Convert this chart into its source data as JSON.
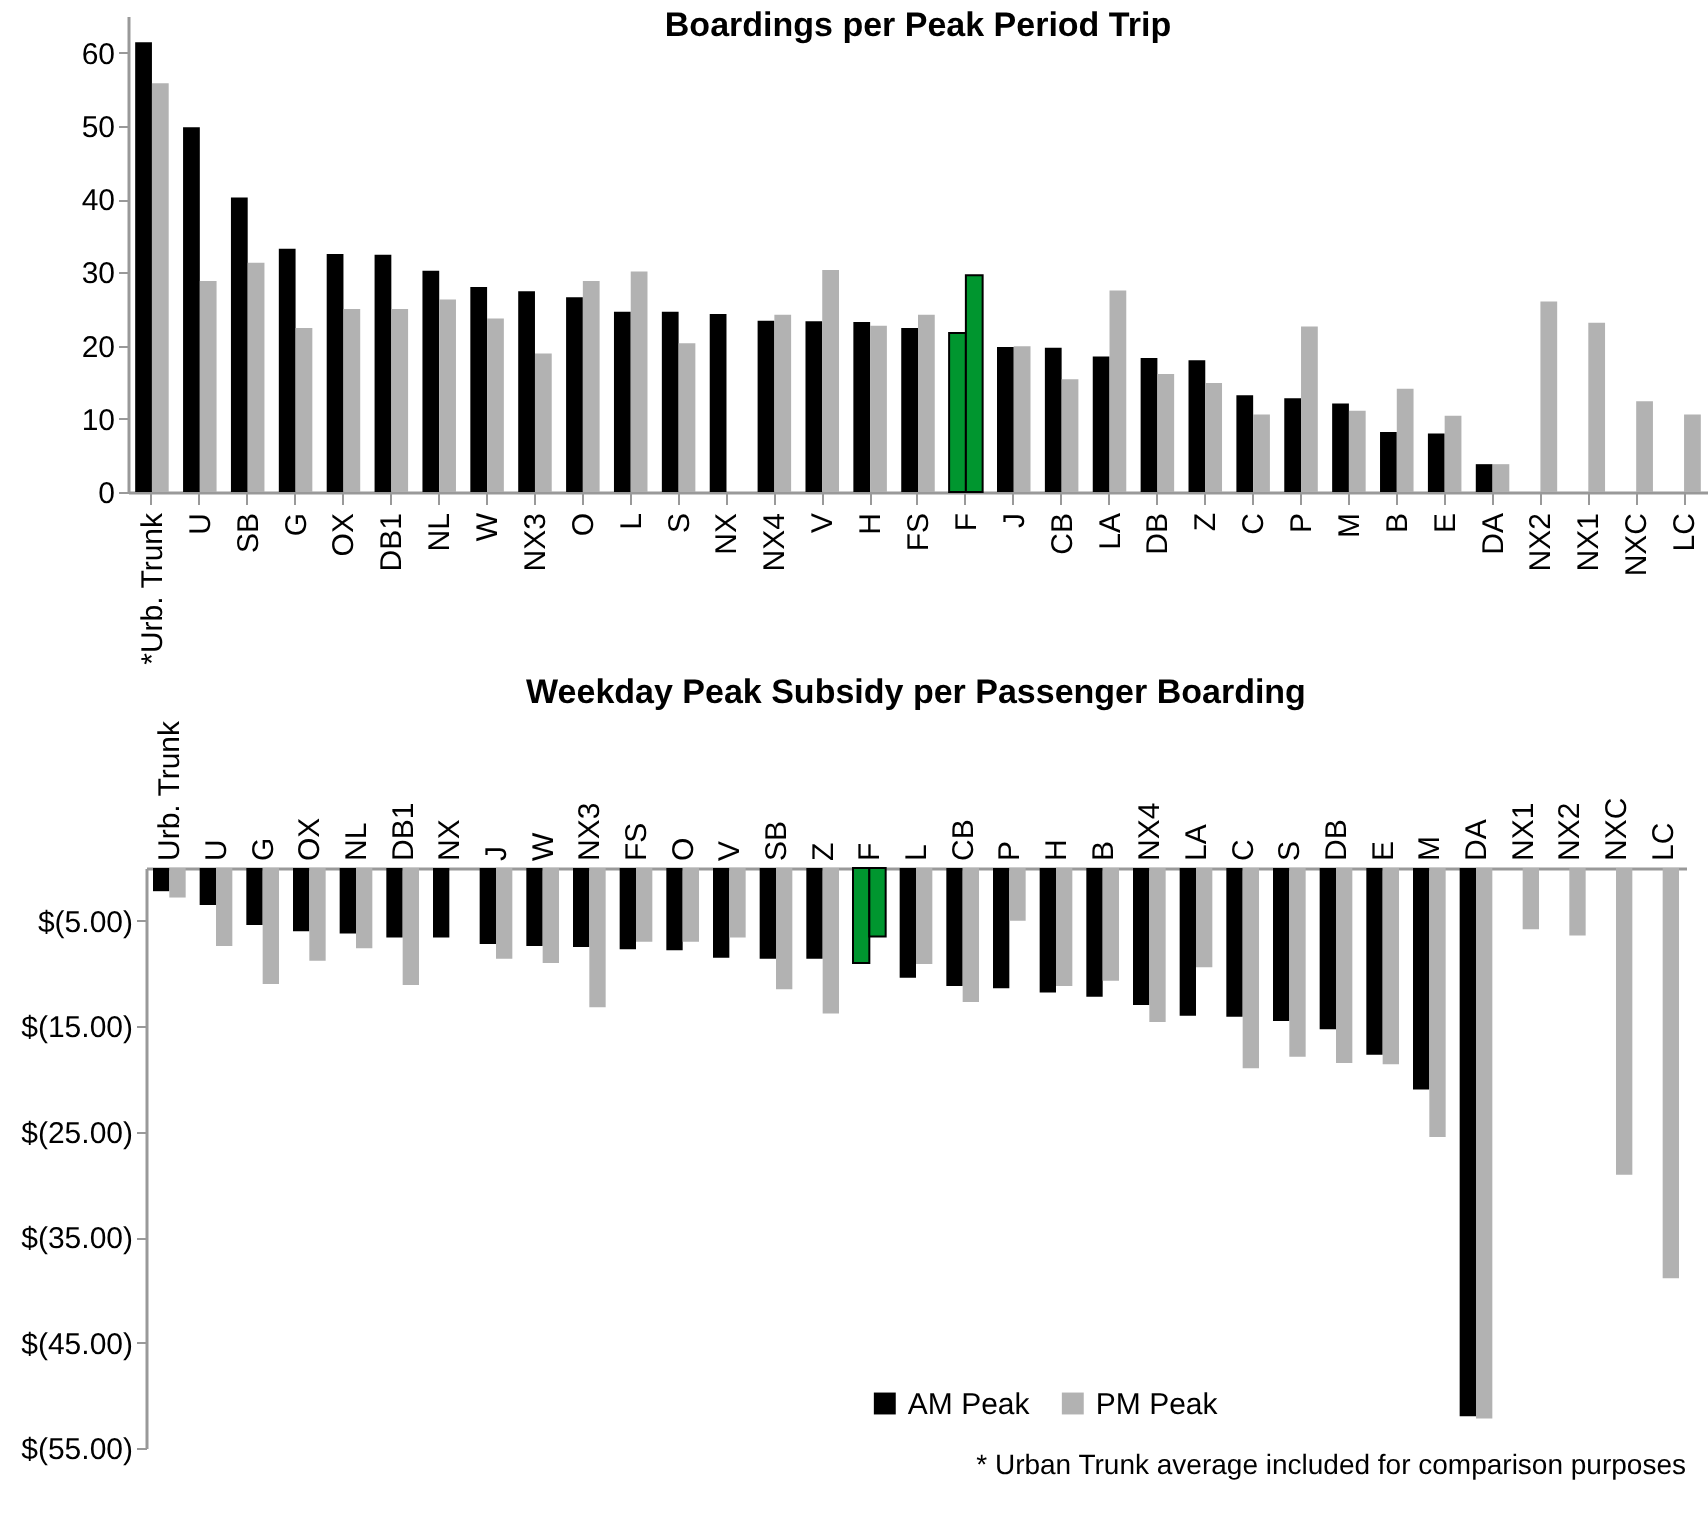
{
  "chart_data": [
    {
      "type": "bar",
      "title": "Boardings per Peak Period Trip",
      "categories": [
        "*Urb. Trunk",
        "U",
        "SB",
        "G",
        "OX",
        "DB1",
        "NL",
        "W",
        "NX3",
        "O",
        "L",
        "S",
        "NX",
        "NX4",
        "V",
        "H",
        "FS",
        "F",
        "J",
        "CB",
        "LA",
        "DB",
        "Z",
        "C",
        "P",
        "M",
        "B",
        "E",
        "DA",
        "NX2",
        "NX1",
        "NXC",
        "LC"
      ],
      "series": [
        {
          "color": "#000000",
          "colors": [
            "#000000",
            "#000000",
            "#000000",
            "#000000",
            "#000000",
            "#000000",
            "#000000",
            "#000000",
            "#000000",
            "#000000",
            "#000000",
            "#000000",
            "#000000",
            "#000000",
            "#000000",
            "#000000",
            "#000000",
            "#00962f",
            "#000000",
            "#000000",
            "#000000",
            "#000000",
            "#000000",
            "#000000",
            "#000000",
            "#000000",
            "#000000",
            "#000000",
            "#000000",
            "#000000",
            "#000000",
            "#000000",
            "#000000"
          ],
          "values": [
            61.4,
            49.8,
            40.2,
            33.2,
            32.5,
            32.4,
            30.2,
            28.0,
            27.4,
            26.6,
            24.6,
            24.6,
            24.3,
            23.4,
            23.3,
            23.2,
            22.4,
            21.7,
            19.8,
            19.7,
            18.5,
            18.3,
            18.0,
            13.2,
            12.8,
            12.1,
            8.2,
            8.0,
            3.8,
            null,
            null,
            null,
            null
          ]
        },
        {
          "color": "#b2b2b2",
          "colors": [
            "#b2b2b2",
            "#b2b2b2",
            "#b2b2b2",
            "#b2b2b2",
            "#b2b2b2",
            "#b2b2b2",
            "#b2b2b2",
            "#b2b2b2",
            "#b2b2b2",
            "#b2b2b2",
            "#b2b2b2",
            "#b2b2b2",
            "#b2b2b2",
            "#b2b2b2",
            "#b2b2b2",
            "#b2b2b2",
            "#b2b2b2",
            "#00962f",
            "#b2b2b2",
            "#b2b2b2",
            "#b2b2b2",
            "#b2b2b2",
            "#b2b2b2",
            "#b2b2b2",
            "#b2b2b2",
            "#b2b2b2",
            "#b2b2b2",
            "#b2b2b2",
            "#b2b2b2",
            "#b2b2b2",
            "#b2b2b2",
            "#b2b2b2",
            "#b2b2b2"
          ],
          "values": [
            55.8,
            28.8,
            31.3,
            22.4,
            25.0,
            25.0,
            26.3,
            23.7,
            18.9,
            28.8,
            30.1,
            20.3,
            null,
            24.2,
            30.3,
            22.7,
            24.2,
            29.6,
            19.9,
            15.4,
            27.5,
            16.1,
            14.9,
            10.6,
            22.6,
            11.1,
            14.1,
            10.4,
            3.8,
            26.0,
            23.1,
            12.4,
            10.6
          ]
        }
      ],
      "ylim": [
        0,
        65
      ],
      "yticks": [
        0,
        10,
        20,
        30,
        40,
        50,
        60
      ],
      "grid": false,
      "legend": false
    },
    {
      "type": "bar",
      "title": "Weekday Peak Subsidy per Passenger Boarding",
      "categories": [
        "Urb. Trunk",
        "U",
        "G",
        "OX",
        "NL",
        "DB1",
        "NX",
        "J",
        "W",
        "NX3",
        "FS",
        "O",
        "V",
        "SB",
        "Z",
        "F",
        "L",
        "CB",
        "P",
        "H",
        "B",
        "NX4",
        "LA",
        "C",
        "S",
        "DB",
        "E",
        "M",
        "DA",
        "NX1",
        "NX2",
        "NXC",
        "LC"
      ],
      "series": [
        {
          "name": "AM Peak",
          "color": "#000000",
          "colors": [
            "#000000",
            "#000000",
            "#000000",
            "#000000",
            "#000000",
            "#000000",
            "#000000",
            "#000000",
            "#000000",
            "#000000",
            "#000000",
            "#000000",
            "#000000",
            "#000000",
            "#000000",
            "#00962f",
            "#000000",
            "#000000",
            "#000000",
            "#000000",
            "#000000",
            "#000000",
            "#000000",
            "#000000",
            "#000000",
            "#000000",
            "#000000",
            "#000000",
            "#000000",
            "#000000",
            "#000000",
            "#000000",
            "#000000"
          ],
          "values": [
            -2.2,
            -3.5,
            -5.4,
            -6.0,
            -6.2,
            -6.6,
            -6.6,
            -7.2,
            -7.4,
            -7.5,
            -7.7,
            -7.8,
            -8.5,
            -8.6,
            -8.6,
            -9.0,
            -10.4,
            -11.2,
            -11.4,
            -11.8,
            -12.2,
            -13.0,
            -14.0,
            -14.1,
            -14.5,
            -15.3,
            -17.7,
            -21.0,
            -52.0,
            null,
            null,
            null,
            null
          ]
        },
        {
          "name": "PM Peak",
          "color": "#b2b2b2",
          "colors": [
            "#b2b2b2",
            "#b2b2b2",
            "#b2b2b2",
            "#b2b2b2",
            "#b2b2b2",
            "#b2b2b2",
            "#b2b2b2",
            "#b2b2b2",
            "#b2b2b2",
            "#b2b2b2",
            "#b2b2b2",
            "#b2b2b2",
            "#b2b2b2",
            "#b2b2b2",
            "#b2b2b2",
            "#00962f",
            "#b2b2b2",
            "#b2b2b2",
            "#b2b2b2",
            "#b2b2b2",
            "#b2b2b2",
            "#b2b2b2",
            "#b2b2b2",
            "#b2b2b2",
            "#b2b2b2",
            "#b2b2b2",
            "#b2b2b2",
            "#b2b2b2",
            "#b2b2b2",
            "#b2b2b2",
            "#b2b2b2",
            "#b2b2b2",
            "#b2b2b2"
          ],
          "values": [
            -2.8,
            -7.4,
            -11.0,
            -8.8,
            -7.6,
            -11.1,
            null,
            -8.6,
            -9.0,
            -13.2,
            -7.0,
            -7.0,
            -6.6,
            -11.5,
            -13.8,
            -6.5,
            -9.1,
            -12.7,
            -5.0,
            -11.2,
            -10.7,
            -14.6,
            -9.4,
            -19.0,
            -17.9,
            -18.5,
            -18.6,
            -25.5,
            -52.2,
            -5.8,
            -6.4,
            -29.1,
            -38.9
          ]
        }
      ],
      "ylim": [
        -55,
        0
      ],
      "yticks": [
        {
          "value": -5,
          "label": "$(5.00)"
        },
        {
          "value": -15,
          "label": "$(15.00)"
        },
        {
          "value": -25,
          "label": "$(25.00)"
        },
        {
          "value": -35,
          "label": "$(35.00)"
        },
        {
          "value": -45,
          "label": "$(45.00)"
        },
        {
          "value": -55,
          "label": "$(55.00)"
        }
      ],
      "grid": false,
      "legend": "bottom",
      "annotations": [
        "* Urban Trunk average included for comparison purposes"
      ]
    }
  ]
}
